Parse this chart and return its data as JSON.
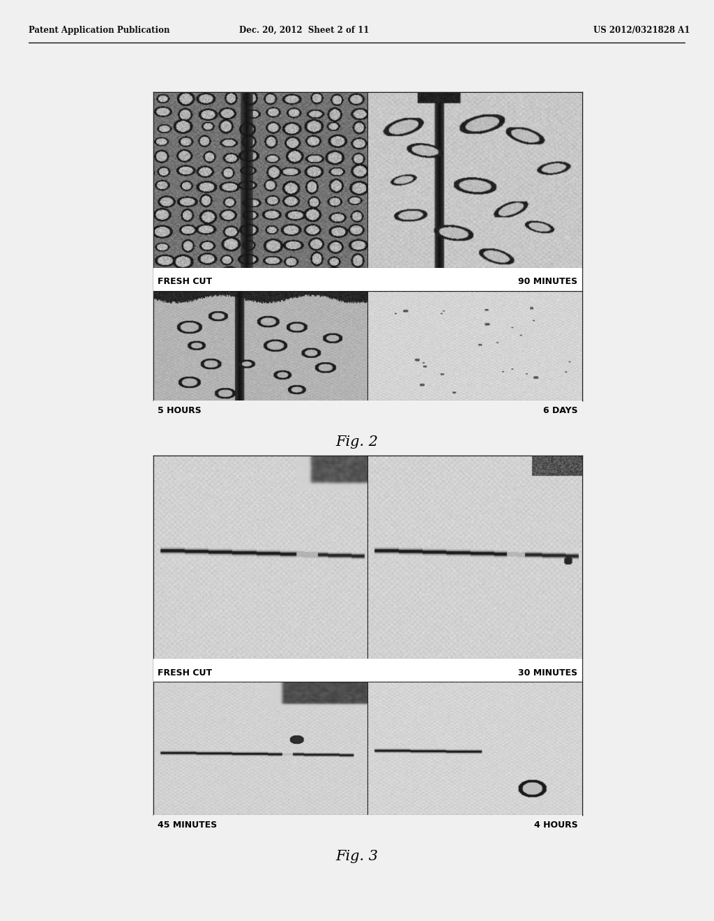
{
  "background_color": "#f0f0f0",
  "page_background": "#f0f0f0",
  "header_text": "Patent Application Publication",
  "header_date": "Dec. 20, 2012  Sheet 2 of 11",
  "header_patent": "US 2012/0321828 A1",
  "fig2_title": "Fig. 2",
  "fig3_title": "Fig. 3",
  "fig2_labels": {
    "top_left": "FRESH CUT",
    "top_right": "90 MINUTES",
    "bottom_left": "5 HOURS",
    "bottom_right": "6 DAYS"
  },
  "fig3_labels": {
    "top_left": "FRESH CUT",
    "top_right": "30 MINUTES",
    "bottom_left": "45 MINUTES",
    "bottom_right": "4 HOURS"
  },
  "panel_border_color": "#222222",
  "label_fontsize": 8,
  "header_fontsize": 8.5,
  "fig_title_fontsize": 15
}
